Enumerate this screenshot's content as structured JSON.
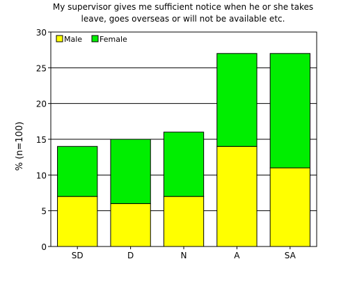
{
  "chart_data": {
    "type": "bar",
    "stacked": true,
    "title_lines": [
      "My supervisor gives me sufficient notice when he or she takes",
      "leave, goes overseas or will not be available etc."
    ],
    "xlabel": "",
    "ylabel": "% (n=100)",
    "categories": [
      "SD",
      "D",
      "N",
      "A",
      "SA"
    ],
    "series": [
      {
        "name": "Male",
        "color": "#ffff00",
        "values": [
          7,
          6,
          7,
          14,
          11
        ]
      },
      {
        "name": "Female",
        "color": "#00ee00",
        "values": [
          7,
          9,
          9,
          13,
          16
        ]
      }
    ],
    "ylim": [
      0,
      30
    ],
    "yticks": [
      0,
      5,
      10,
      15,
      20,
      25,
      30
    ],
    "grid": "horizontal",
    "legend_position": "top-left"
  }
}
